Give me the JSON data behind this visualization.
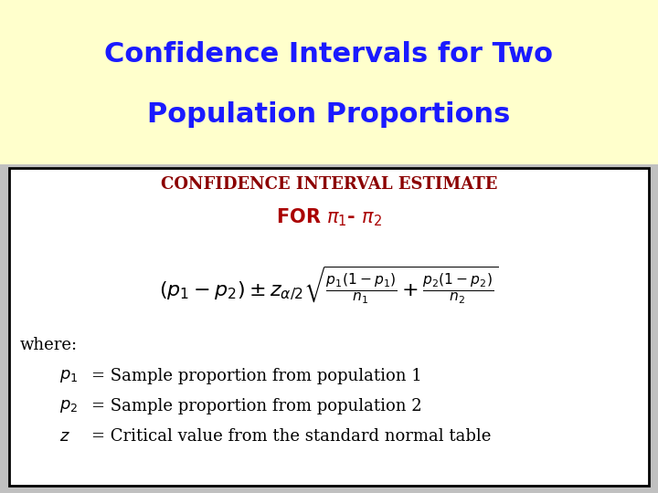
{
  "title_line1": "Confidence Intervals for Two",
  "title_line2": "Population Proportions",
  "title_color": "#1a1aff",
  "title_bg_color": "#ffffcc",
  "box_bg_color": "#ffffff",
  "box_border_color": "#000000",
  "subtitle": "CONFIDENCE INTERVAL ESTIMATE",
  "subtitle_color": "#8b0000",
  "for_color": "#aa0000",
  "formula_color": "#000000",
  "where_text": "where:",
  "p1_desc": "= Sample proportion from population 1",
  "p2_desc": "= Sample proportion from population 2",
  "z_desc": "= Critical value from the standard normal table",
  "bg_color": "#c0c0c0",
  "title_fontsize": 22,
  "subtitle_fontsize": 13,
  "for_fontsize": 15,
  "formula_fontsize": 14,
  "body_fontsize": 12
}
